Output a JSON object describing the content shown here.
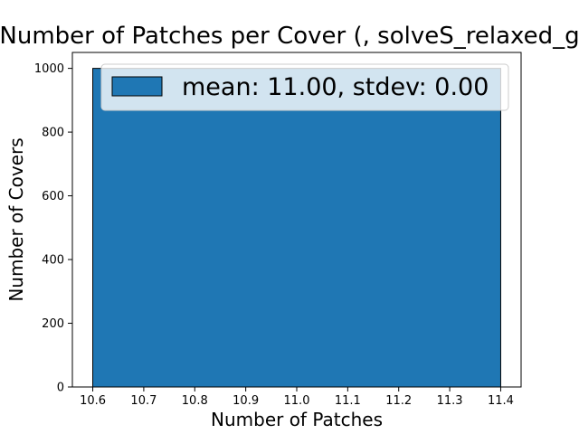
{
  "chart_data": {
    "type": "bar",
    "title": "Number of Patches per Cover (, solveS_relaxed_g",
    "xlabel": "Number of Patches",
    "ylabel": "Number of Covers",
    "xlim": [
      10.56,
      11.44
    ],
    "ylim": [
      0,
      1050
    ],
    "xticks": [
      10.6,
      10.7,
      10.8,
      10.9,
      11.0,
      11.1,
      11.2,
      11.3,
      11.4
    ],
    "xtick_labels": [
      "10.6",
      "10.7",
      "10.8",
      "10.9",
      "11.0",
      "11.1",
      "11.2",
      "11.3",
      "11.4"
    ],
    "yticks": [
      0,
      200,
      400,
      600,
      800,
      1000
    ],
    "ytick_labels": [
      "0",
      "200",
      "400",
      "600",
      "800",
      "1000"
    ],
    "bins": [
      {
        "x0": 10.6,
        "x1": 11.4,
        "value": 1000
      }
    ],
    "legend": {
      "position": "top-right",
      "entries": [
        {
          "label": "mean: 11.00, stdev: 0.00",
          "color": "#1f77b4"
        }
      ]
    },
    "grid": false,
    "bar_color": "#1f77b4"
  }
}
